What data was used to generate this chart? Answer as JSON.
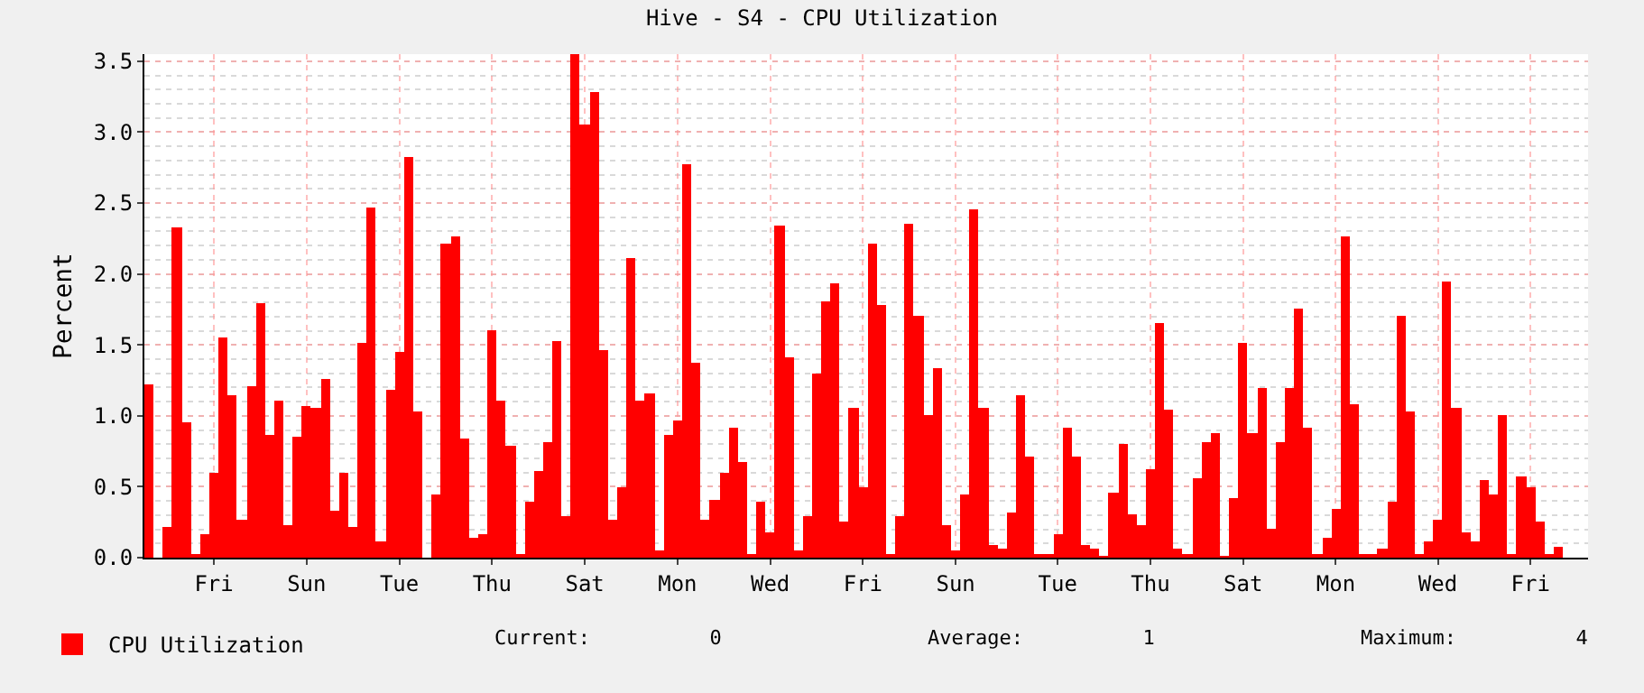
{
  "chart_data": {
    "type": "bar",
    "title": "Hive - S4 - CPU Utilization",
    "ylabel": "Percent",
    "categories": [
      null,
      null,
      null,
      null,
      null,
      null,
      null,
      "Fri",
      null,
      null,
      null,
      null,
      null,
      null,
      null,
      null,
      null,
      "Sun",
      null,
      null,
      null,
      null,
      null,
      null,
      null,
      null,
      null,
      "Tue",
      null,
      null,
      null,
      null,
      null,
      null,
      null,
      null,
      null,
      "Thu",
      null,
      null,
      null,
      null,
      null,
      null,
      null,
      null,
      null,
      "Sat",
      null,
      null,
      null,
      null,
      null,
      null,
      null,
      null,
      null,
      "Mon",
      null,
      null,
      null,
      null,
      null,
      null,
      null,
      null,
      null,
      "Wed",
      null,
      null,
      null,
      null,
      null,
      null,
      null,
      null,
      null,
      "Fri",
      null,
      null,
      null,
      null,
      null,
      null,
      null,
      null,
      null,
      "Sun",
      null,
      null,
      null,
      null,
      null,
      null,
      null,
      null,
      null,
      null,
      "Tue",
      null,
      null,
      null,
      null,
      null,
      null,
      null,
      null,
      null,
      "Thu",
      null,
      null,
      null,
      null,
      null,
      null,
      null,
      null,
      null,
      "Sat",
      null,
      null,
      null,
      null,
      null,
      null,
      null,
      null,
      null,
      "Mon",
      null,
      null,
      null,
      null,
      null,
      null,
      null,
      null,
      null,
      null,
      "Wed",
      null,
      null,
      null,
      null,
      null,
      null,
      null,
      null,
      null,
      "Fri",
      null,
      null,
      null,
      null
    ],
    "series": [
      {
        "name": "CPU Utilization",
        "color": "#ff0000",
        "values": [
          1.22,
          0,
          0.22,
          2.33,
          0.96,
          0.02,
          0.16,
          0.6,
          1.55,
          1.15,
          0.27,
          1.21,
          1.79,
          0.86,
          1.11,
          0.23,
          0.85,
          1.07,
          1.05,
          1.26,
          0.33,
          0.6,
          0.22,
          1.52,
          2.47,
          0.11,
          1.18,
          1.45,
          2.82,
          1.03,
          0,
          0.44,
          2.21,
          2.26,
          0.84,
          0.14,
          0.17,
          1.6,
          1.11,
          0.79,
          0.03,
          0.39,
          0.61,
          0.81,
          1.53,
          0.29,
          3.55,
          3.06,
          3.28,
          1.46,
          0.27,
          0.49,
          2.11,
          1.11,
          1.16,
          0.05,
          0.87,
          0.97,
          2.78,
          1.38,
          0.27,
          0.41,
          0.6,
          0.91,
          0.68,
          0.02,
          0.4,
          0.18,
          2.34,
          1.41,
          0.05,
          0.29,
          1.3,
          1.81,
          1.93,
          0.26,
          1.05,
          0.5,
          2.22,
          1.78,
          0.03,
          0.29,
          2.36,
          1.71,
          1.0,
          1.33,
          0.23,
          0.05,
          0.45,
          2.45,
          1.05,
          0.09,
          0.07,
          0.32,
          1.14,
          0.71,
          0.02,
          0.03,
          0.16,
          0.92,
          0.71,
          0.09,
          0.07,
          0.01,
          0.46,
          0.8,
          0.31,
          0.23,
          0.62,
          1.65,
          1.04,
          0.07,
          0.02,
          0.56,
          0.82,
          0.88,
          0.01,
          0.42,
          1.51,
          0.88,
          1.2,
          0.2,
          0.82,
          1.2,
          1.75,
          0.91,
          0.03,
          0.14,
          0.34,
          2.26,
          1.08,
          0.02,
          0.02,
          0.06,
          0.4,
          1.7,
          1.03,
          0.03,
          0.11,
          0.27,
          1.95,
          1.06,
          0.18,
          0.11,
          0.55,
          0.45,
          1.0,
          0.02,
          0.57,
          0.5,
          0.26,
          0.02,
          0.08,
          0
        ]
      }
    ],
    "ylim": [
      0,
      3.55
    ],
    "yticks": [
      {
        "value": 0,
        "label": "0.0"
      },
      {
        "value": 0.5,
        "label": "0.5"
      },
      {
        "value": 1,
        "label": "1.0"
      },
      {
        "value": 1.5,
        "label": "1.5"
      },
      {
        "value": 2,
        "label": "2.0"
      },
      {
        "value": 2.5,
        "label": "2.5"
      },
      {
        "value": 3,
        "label": "3.0"
      },
      {
        "value": 3.5,
        "label": "3.5"
      }
    ],
    "grid": true,
    "legend": "bottom left",
    "annotations": [
      "Current:          0",
      "Average:          1",
      "Maximum:          4"
    ]
  }
}
